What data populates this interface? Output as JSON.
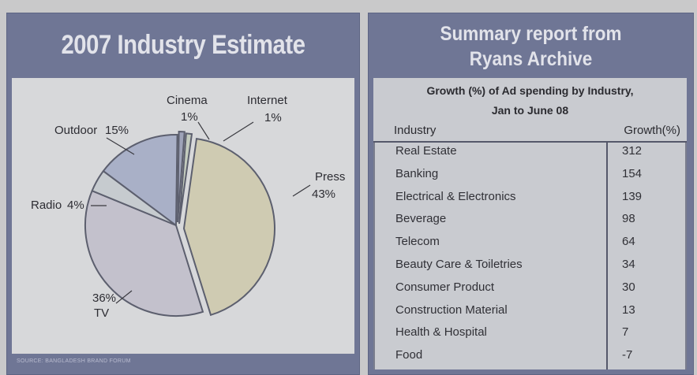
{
  "left_panel": {
    "title": "2007 Industry Estimate",
    "source": "SOURCE: BANGLADESH BRAND FORUM"
  },
  "right_panel": {
    "title_line1": "Summary report from",
    "title_line2": "Ryans Archive",
    "subtitle_line1": "Growth (%) of Ad spending by Industry,",
    "subtitle_line2": "Jan to June 08",
    "headers": {
      "industry": "Industry",
      "growth": "Growth(%)"
    }
  },
  "chart_data": [
    {
      "type": "pie",
      "title": "2007 Industry Estimate",
      "unit": "%",
      "slices": [
        {
          "label": "Press",
          "value": 43,
          "label_text": "Press",
          "value_text": "43%",
          "color": "#cfcbb2"
        },
        {
          "label": "TV",
          "value": 36,
          "label_text": "TV",
          "value_text": "36%",
          "color": "#c3c1cc"
        },
        {
          "label": "Radio",
          "value": 4,
          "label_text": "Radio",
          "value_text": "4%",
          "color": "#c6cbcf"
        },
        {
          "label": "Outdoor",
          "value": 15,
          "label_text": "Outdoor",
          "value_text": "15%",
          "color": "#a9b0c7"
        },
        {
          "label": "Cinema",
          "value": 1,
          "label_text": "Cinema",
          "value_text": "1%",
          "color": "#9ea3b8"
        },
        {
          "label": "Internet",
          "value": 1,
          "label_text": "Internet",
          "value_text": "1%",
          "color": "#c3cbbe"
        }
      ],
      "source": "SOURCE: BANGLADESH BRAND FORUM"
    },
    {
      "type": "table",
      "title": "Growth (%) of Ad spending by Industry, Jan to June 08",
      "columns": [
        "Industry",
        "Growth(%)"
      ],
      "rows": [
        {
          "industry": "Real Estate",
          "growth": "312"
        },
        {
          "industry": "Banking",
          "growth": "154"
        },
        {
          "industry": "Electrical & Electronics",
          "growth": "139"
        },
        {
          "industry": "Beverage",
          "growth": "98"
        },
        {
          "industry": "Telecom",
          "growth": "64"
        },
        {
          "industry": "Beauty Care & Toiletries",
          "growth": "34"
        },
        {
          "industry": "Consumer Product",
          "growth": "30"
        },
        {
          "industry": "Construction Material",
          "growth": "13"
        },
        {
          "industry": "Health & Hospital",
          "growth": "7"
        },
        {
          "industry": "Food",
          "growth": "-7"
        }
      ]
    }
  ]
}
